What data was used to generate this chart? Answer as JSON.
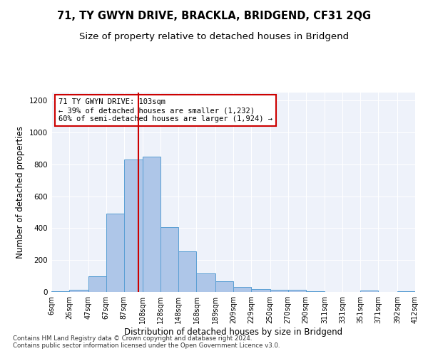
{
  "title": "71, TY GWYN DRIVE, BRACKLA, BRIDGEND, CF31 2QG",
  "subtitle": "Size of property relative to detached houses in Bridgend",
  "xlabel": "Distribution of detached houses by size in Bridgend",
  "ylabel": "Number of detached properties",
  "bin_edges": [
    6,
    26,
    47,
    67,
    87,
    108,
    128,
    148,
    168,
    189,
    209,
    229,
    250,
    270,
    290,
    311,
    331,
    351,
    371,
    392,
    412
  ],
  "bar_heights": [
    6,
    12,
    100,
    490,
    830,
    850,
    405,
    255,
    115,
    65,
    30,
    20,
    15,
    15,
    5,
    0,
    0,
    8,
    0,
    5
  ],
  "bar_color": "#aec6e8",
  "bar_edge_color": "#5a9fd4",
  "vline_x": 103,
  "vline_color": "#cc0000",
  "annotation_line1": "71 TY GWYN DRIVE: 103sqm",
  "annotation_line2": "← 39% of detached houses are smaller (1,232)",
  "annotation_line3": "60% of semi-detached houses are larger (1,924) →",
  "annotation_box_color": "#ffffff",
  "annotation_box_edge": "#cc0000",
  "ylim": [
    0,
    1250
  ],
  "yticks": [
    0,
    200,
    400,
    600,
    800,
    1000,
    1200
  ],
  "tick_labels": [
    "6sqm",
    "26sqm",
    "47sqm",
    "67sqm",
    "87sqm",
    "108sqm",
    "128sqm",
    "148sqm",
    "168sqm",
    "189sqm",
    "209sqm",
    "229sqm",
    "250sqm",
    "270sqm",
    "290sqm",
    "311sqm",
    "331sqm",
    "351sqm",
    "371sqm",
    "392sqm",
    "412sqm"
  ],
  "footnote": "Contains HM Land Registry data © Crown copyright and database right 2024.\nContains public sector information licensed under the Open Government Licence v3.0.",
  "bg_color": "#eef2fa",
  "title_fontsize": 10.5,
  "subtitle_fontsize": 9.5,
  "axis_label_fontsize": 8.5,
  "tick_fontsize": 7,
  "annotation_fontsize": 7.5
}
